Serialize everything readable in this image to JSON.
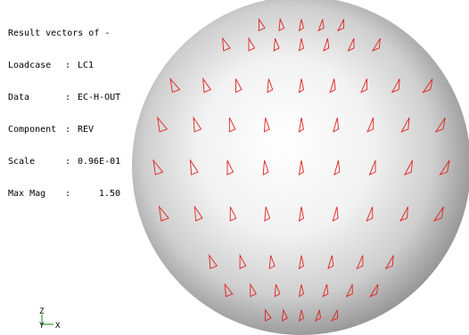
{
  "info": {
    "title": "Result vectors of -",
    "rows": [
      {
        "key": "Loadcase",
        "sep": ":",
        "value": "LC1"
      },
      {
        "key": "Data",
        "sep": ":",
        "value": "EC-H-OUT"
      },
      {
        "key": "Component",
        "sep": ":",
        "value": "REV"
      },
      {
        "key": "Scale",
        "sep": ":",
        "value": "0.96E-01"
      },
      {
        "key": "Max Mag",
        "sep": ":",
        "value": "1.50"
      }
    ]
  },
  "axes": {
    "z_label": "Z",
    "y_label": "Y",
    "x_label": "X"
  },
  "colors": {
    "background": "#ffffff",
    "vector": "#e0201c",
    "sphere_highlight": "#ffffff",
    "sphere_shadow": "#8a8a8a",
    "axes": "#0a8a0a",
    "text": "#000000"
  },
  "icons": {
    "vector_glyph": "triangle-arrow-icon",
    "triad": "axis-triad-icon"
  }
}
